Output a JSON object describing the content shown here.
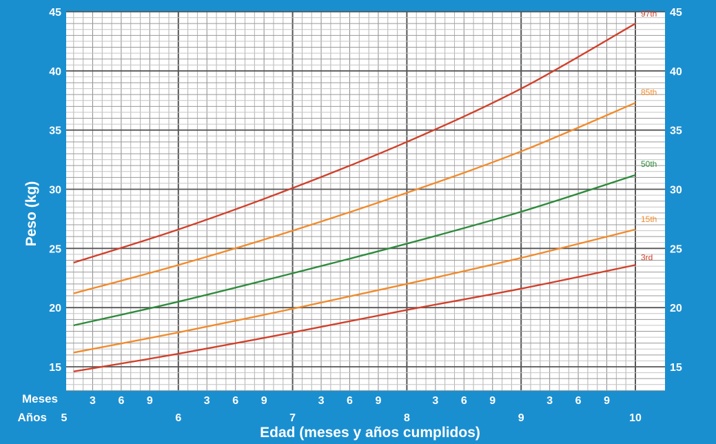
{
  "chart_data": {
    "type": "line",
    "title": "",
    "xlabel": "Edad (meses y años cumplidos)",
    "ylabel": "Peso (kg)",
    "row_labels": {
      "months": "Meses",
      "years": "Años"
    },
    "xlim": [
      5,
      10
    ],
    "ylim": [
      13,
      45
    ],
    "x_major_ticks": [
      "5",
      "6",
      "7",
      "8",
      "9",
      "10"
    ],
    "x_month_ticks": [
      "3",
      "6",
      "9"
    ],
    "y_ticks": [
      "15",
      "20",
      "25",
      "30",
      "35",
      "40",
      "45"
    ],
    "grid": true,
    "x_unit": "years",
    "series": [
      {
        "name": "97th",
        "color": "#d1402a",
        "points": [
          [
            5.083,
            23.8
          ],
          [
            6,
            26.6
          ],
          [
            7,
            30.1
          ],
          [
            8,
            34
          ],
          [
            9,
            38.5
          ],
          [
            10,
            44
          ]
        ]
      },
      {
        "name": "85th",
        "color": "#f28a2a",
        "points": [
          [
            5.083,
            21.2
          ],
          [
            6,
            23.6
          ],
          [
            7,
            26.5
          ],
          [
            8,
            29.7
          ],
          [
            9,
            33.2
          ],
          [
            10,
            37.3
          ]
        ]
      },
      {
        "name": "50th",
        "color": "#2e8b3c",
        "points": [
          [
            5.083,
            18.5
          ],
          [
            6,
            20.5
          ],
          [
            7,
            22.9
          ],
          [
            8,
            25.4
          ],
          [
            9,
            28.1
          ],
          [
            10,
            31.2
          ]
        ]
      },
      {
        "name": "15th",
        "color": "#f28a2a",
        "points": [
          [
            5.083,
            16.2
          ],
          [
            6,
            17.9
          ],
          [
            7,
            19.9
          ],
          [
            8,
            22
          ],
          [
            9,
            24.2
          ],
          [
            10,
            26.6
          ]
        ]
      },
      {
        "name": "3rd",
        "color": "#d1402a",
        "points": [
          [
            5.083,
            14.6
          ],
          [
            6,
            16.1
          ],
          [
            7,
            17.9
          ],
          [
            8,
            19.8
          ],
          [
            9,
            21.6
          ],
          [
            10,
            23.6
          ]
        ]
      }
    ]
  }
}
